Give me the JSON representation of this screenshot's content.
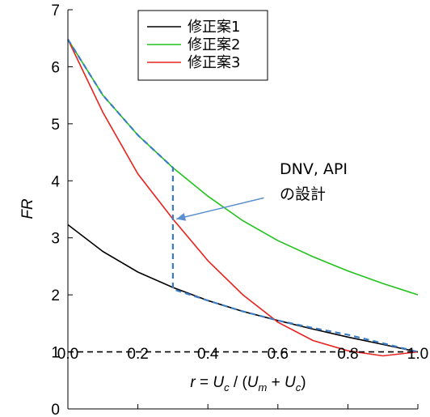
{
  "chart_data": {
    "type": "line",
    "xlim": [
      0.0,
      1.0
    ],
    "ylim": [
      0,
      7
    ],
    "x_ticks": [
      "0.0",
      "0.2",
      "0.4",
      "0.6",
      "0.8",
      "1.0"
    ],
    "y_ticks": [
      "0",
      "1",
      "2",
      "3",
      "4",
      "5",
      "6",
      "7"
    ],
    "ylabel": "FR",
    "xlabel": "r = Uc / (Um + Uc)",
    "legend_position": "top-center",
    "series": [
      {
        "name": "修正案1",
        "color": "#000000",
        "style": "solid",
        "x": [
          0.0,
          0.1,
          0.2,
          0.3,
          0.4,
          0.5,
          0.6,
          0.7,
          0.8,
          0.9,
          1.0
        ],
        "y": [
          3.23,
          2.76,
          2.4,
          2.13,
          1.9,
          1.71,
          1.55,
          1.4,
          1.26,
          1.13,
          1.0
        ]
      },
      {
        "name": "修正案2",
        "color": "#22c21e",
        "style": "solid",
        "x": [
          0.0,
          0.1,
          0.2,
          0.3,
          0.4,
          0.5,
          0.6,
          0.7,
          0.8,
          0.9,
          1.0
        ],
        "y": [
          6.48,
          5.5,
          4.8,
          4.23,
          3.73,
          3.3,
          2.95,
          2.67,
          2.42,
          2.2,
          2.0
        ]
      },
      {
        "name": "修正案3",
        "color": "#e8231e",
        "style": "solid",
        "x": [
          0.0,
          0.1,
          0.2,
          0.3,
          0.4,
          0.5,
          0.6,
          0.7,
          0.8,
          0.9,
          1.0
        ],
        "y": [
          6.48,
          5.2,
          4.12,
          3.33,
          2.6,
          2.0,
          1.52,
          1.2,
          1.02,
          0.93,
          1.0
        ]
      },
      {
        "name": "DNV, API の設計",
        "color": "#3a7cc4",
        "style": "dashed",
        "x": [
          0.0,
          0.1,
          0.2,
          0.3,
          0.3,
          0.4,
          0.5,
          0.6,
          0.7,
          0.8,
          0.9,
          1.0
        ],
        "y": [
          6.48,
          5.5,
          4.8,
          4.23,
          2.1,
          1.9,
          1.71,
          1.55,
          1.42,
          1.3,
          1.15,
          1.0
        ]
      },
      {
        "name": "",
        "color": "#000000",
        "style": "dashed",
        "x": [
          0.0,
          1.0
        ],
        "y": [
          1.0,
          1.0
        ]
      }
    ],
    "annotation": {
      "line1": "DNV, API",
      "line2": "の設計",
      "arrow_from": [
        0.56,
        3.7
      ],
      "arrow_to": [
        0.31,
        3.33
      ],
      "arrow_color": "#5b8fd0"
    },
    "legend": [
      "修正案1",
      "修正案2",
      "修正案3"
    ]
  }
}
